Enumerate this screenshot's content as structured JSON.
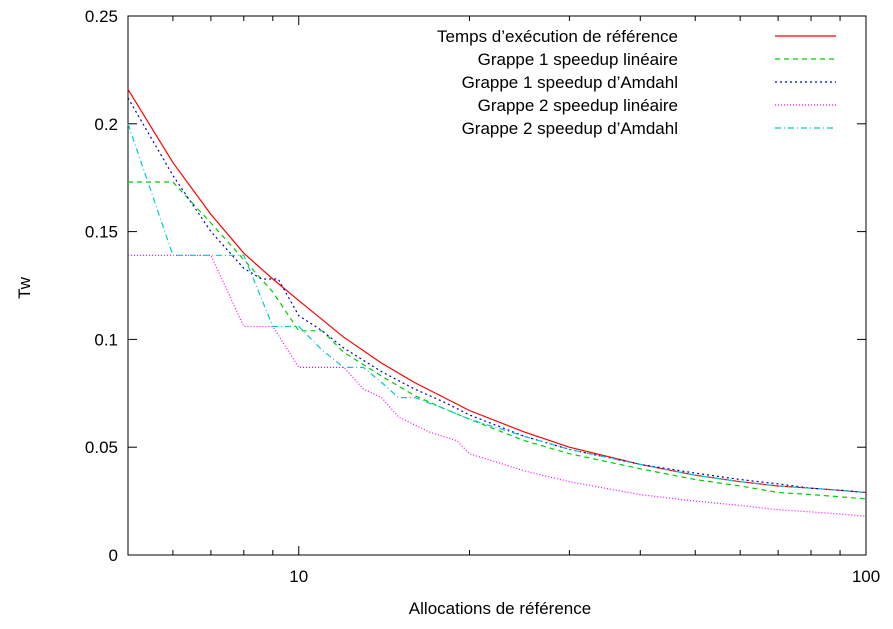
{
  "chart_data": {
    "type": "line",
    "title": "",
    "xlabel": "Allocations de référence",
    "ylabel": "Tw",
    "xscale": "log",
    "xlim": [
      5,
      100
    ],
    "ylim": [
      0,
      0.25
    ],
    "grid": false,
    "legend_position": "top-right",
    "x_ticks": [
      {
        "value": 10,
        "label": "10"
      },
      {
        "value": 100,
        "label": "100"
      }
    ],
    "y_ticks": [
      {
        "value": 0,
        "label": "0"
      },
      {
        "value": 0.05,
        "label": "0.05"
      },
      {
        "value": 0.1,
        "label": "0.1"
      },
      {
        "value": 0.15,
        "label": "0.15"
      },
      {
        "value": 0.2,
        "label": "0.2"
      },
      {
        "value": 0.25,
        "label": "0.25"
      }
    ],
    "series": [
      {
        "name": "Temps d’exécution de référence",
        "color": "#ff0000",
        "dash": "",
        "line": "step",
        "x": [
          5,
          6,
          7,
          8,
          9,
          10,
          12,
          14,
          16,
          20,
          25,
          30,
          40,
          50,
          60,
          70,
          80,
          90,
          100
        ],
        "y": [
          0.216,
          0.182,
          0.158,
          0.14,
          0.128,
          0.118,
          0.101,
          0.089,
          0.08,
          0.067,
          0.057,
          0.05,
          0.042,
          0.037,
          0.034,
          0.032,
          0.031,
          0.03,
          0.029
        ]
      },
      {
        "name": "Grappe 1  speedup linéaire",
        "color": "#00cc00",
        "dash": "5,4",
        "line": "step",
        "x": [
          5,
          6,
          7,
          8,
          9,
          10,
          11,
          12,
          14,
          16,
          18,
          20,
          25,
          30,
          40,
          50,
          60,
          70,
          80,
          90,
          100
        ],
        "y": [
          0.173,
          0.173,
          0.154,
          0.137,
          0.122,
          0.104,
          0.104,
          0.094,
          0.083,
          0.074,
          0.068,
          0.063,
          0.053,
          0.047,
          0.04,
          0.035,
          0.032,
          0.029,
          0.028,
          0.027,
          0.026
        ]
      },
      {
        "name": "Grappe 1 speedup d’Amdahl",
        "color": "#0000cc",
        "dash": "2,3",
        "line": "step",
        "x": [
          5,
          6,
          7,
          8,
          8.6,
          9.2,
          10,
          11,
          12,
          14,
          16,
          18,
          20,
          25,
          30,
          40,
          50,
          60,
          70,
          80,
          90,
          100
        ],
        "y": [
          0.212,
          0.176,
          0.15,
          0.133,
          0.128,
          0.128,
          0.111,
          0.104,
          0.096,
          0.085,
          0.077,
          0.071,
          0.065,
          0.055,
          0.049,
          0.042,
          0.038,
          0.035,
          0.033,
          0.031,
          0.03,
          0.029
        ]
      },
      {
        "name": "Grappe 2 speedup linéaire",
        "color": "#ff00ff",
        "dash": "1,2",
        "line": "step",
        "x": [
          5,
          7,
          8,
          9,
          10,
          11,
          12,
          13,
          14,
          15,
          17,
          19,
          20,
          25,
          30,
          40,
          50,
          60,
          70,
          80,
          90,
          100
        ],
        "y": [
          0.139,
          0.139,
          0.106,
          0.106,
          0.087,
          0.087,
          0.087,
          0.077,
          0.073,
          0.064,
          0.057,
          0.053,
          0.047,
          0.039,
          0.034,
          0.028,
          0.025,
          0.023,
          0.021,
          0.02,
          0.019,
          0.018
        ]
      },
      {
        "name": "Grappe 2 speedup d’Amdahl",
        "color": "#00cccc",
        "dash": "6,3,1,3",
        "line": "step",
        "x": [
          5,
          6,
          8,
          9,
          10,
          11,
          12,
          13,
          14,
          15,
          16,
          18,
          20,
          25,
          30,
          40,
          50,
          60,
          70,
          80,
          90,
          100
        ],
        "y": [
          0.2,
          0.139,
          0.139,
          0.106,
          0.106,
          0.095,
          0.087,
          0.087,
          0.08,
          0.073,
          0.073,
          0.068,
          0.063,
          0.055,
          0.049,
          0.042,
          0.037,
          0.034,
          0.032,
          0.031,
          0.03,
          0.029
        ]
      }
    ]
  }
}
